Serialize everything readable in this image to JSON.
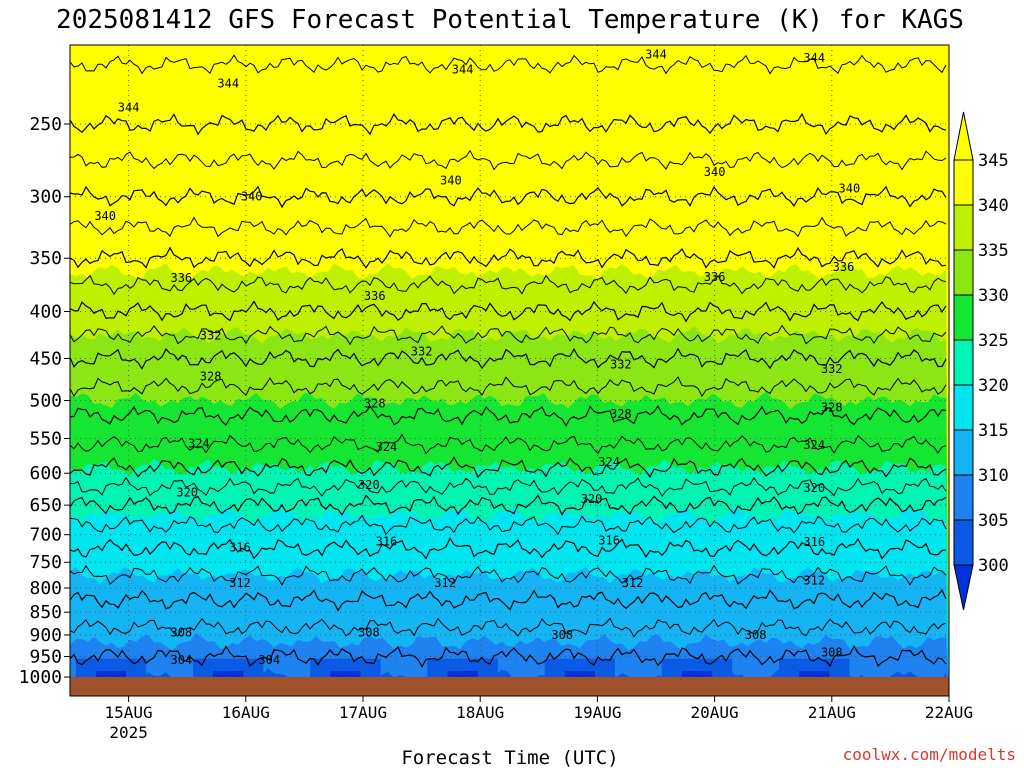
{
  "chart_data": {
    "type": "heatmap",
    "title": "2025081412 GFS Forecast Potential Temperature (K) for KAGS",
    "xlabel": "Forecast Time (UTC)",
    "ylabel": "",
    "x_ticks": [
      "15AUG",
      "16AUG",
      "17AUG",
      "18AUG",
      "19AUG",
      "20AUG",
      "21AUG",
      "22AUG"
    ],
    "x_tick_sub": "2025",
    "x_range_days": [
      14.5,
      22.0
    ],
    "y_ticks": [
      250,
      300,
      350,
      400,
      450,
      500,
      550,
      600,
      650,
      700,
      750,
      800,
      850,
      900,
      950,
      1000
    ],
    "y_range_hpa": [
      200,
      1000
    ],
    "y_scale": "log-pressure",
    "colorbar_levels": [
      300,
      305,
      310,
      315,
      320,
      325,
      330,
      335,
      340,
      345
    ],
    "colorbar_colors": [
      "#0032dc",
      "#0a5ae6",
      "#1e82f0",
      "#14b4f5",
      "#00e6f0",
      "#00f5b4",
      "#14e632",
      "#8ce614",
      "#bef000",
      "#ffff00",
      "#ffff00"
    ],
    "contour_interval": 4,
    "contour_levels": [
      304,
      308,
      312,
      316,
      320,
      324,
      328,
      332,
      336,
      340,
      344
    ],
    "profile": {
      "pressure": [
        1000,
        950,
        900,
        850,
        800,
        750,
        700,
        650,
        600,
        550,
        500,
        450,
        400,
        350,
        300,
        250,
        200
      ],
      "theta": [
        302,
        304,
        305.5,
        307,
        309,
        311,
        313,
        316,
        319.5,
        322.5,
        325,
        328,
        332,
        336,
        340,
        344,
        347
      ]
    },
    "contour_labels": [
      {
        "text": "344",
        "day": 15.0,
        "p": 240
      },
      {
        "text": "344",
        "day": 15.85,
        "p": 226
      },
      {
        "text": "344",
        "day": 17.85,
        "p": 218
      },
      {
        "text": "344",
        "day": 19.5,
        "p": 210
      },
      {
        "text": "344",
        "day": 20.85,
        "p": 212
      },
      {
        "text": "340",
        "day": 14.8,
        "p": 315
      },
      {
        "text": "340",
        "day": 16.05,
        "p": 300
      },
      {
        "text": "340",
        "day": 17.75,
        "p": 288
      },
      {
        "text": "340",
        "day": 20.0,
        "p": 282
      },
      {
        "text": "340",
        "day": 21.15,
        "p": 294
      },
      {
        "text": "336",
        "day": 15.45,
        "p": 368
      },
      {
        "text": "336",
        "day": 17.1,
        "p": 385
      },
      {
        "text": "336",
        "day": 20.0,
        "p": 367
      },
      {
        "text": "336",
        "day": 21.1,
        "p": 358
      },
      {
        "text": "332",
        "day": 15.7,
        "p": 425
      },
      {
        "text": "332",
        "day": 17.5,
        "p": 442
      },
      {
        "text": "332",
        "day": 19.2,
        "p": 457
      },
      {
        "text": "332",
        "day": 21.0,
        "p": 462
      },
      {
        "text": "328",
        "day": 15.7,
        "p": 471
      },
      {
        "text": "328",
        "day": 17.1,
        "p": 504
      },
      {
        "text": "328",
        "day": 19.2,
        "p": 517
      },
      {
        "text": "328",
        "day": 21.0,
        "p": 509
      },
      {
        "text": "324",
        "day": 15.6,
        "p": 557
      },
      {
        "text": "324",
        "day": 17.2,
        "p": 562
      },
      {
        "text": "324",
        "day": 19.1,
        "p": 583
      },
      {
        "text": "324",
        "day": 20.85,
        "p": 559
      },
      {
        "text": "320",
        "day": 15.5,
        "p": 630
      },
      {
        "text": "320",
        "day": 17.05,
        "p": 618
      },
      {
        "text": "320",
        "day": 18.95,
        "p": 640
      },
      {
        "text": "320",
        "day": 20.85,
        "p": 623
      },
      {
        "text": "316",
        "day": 15.95,
        "p": 723
      },
      {
        "text": "316",
        "day": 17.2,
        "p": 712
      },
      {
        "text": "316",
        "day": 19.1,
        "p": 710
      },
      {
        "text": "316",
        "day": 20.85,
        "p": 713
      },
      {
        "text": "312",
        "day": 15.95,
        "p": 790
      },
      {
        "text": "312",
        "day": 17.7,
        "p": 790
      },
      {
        "text": "312",
        "day": 19.3,
        "p": 790
      },
      {
        "text": "312",
        "day": 20.85,
        "p": 785
      },
      {
        "text": "308",
        "day": 15.45,
        "p": 895
      },
      {
        "text": "308",
        "day": 17.05,
        "p": 895
      },
      {
        "text": "308",
        "day": 18.7,
        "p": 900
      },
      {
        "text": "308",
        "day": 20.35,
        "p": 900
      },
      {
        "text": "308",
        "day": 21.0,
        "p": 940
      },
      {
        "text": "304",
        "day": 15.45,
        "p": 1050
      },
      {
        "text": "304",
        "day": 16.2,
        "p": 1025
      }
    ]
  },
  "credit": "coolwx.com/modelts"
}
